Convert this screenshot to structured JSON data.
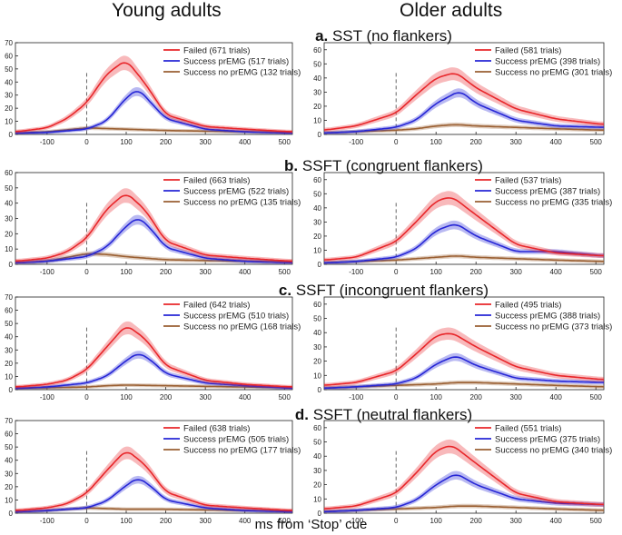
{
  "headers": {
    "young": "Young adults",
    "older": "Older adults"
  },
  "xlabel": "ms from ‘Stop’ cue",
  "colors": {
    "failed": "#e8262a",
    "success_pr": "#2626d6",
    "success_no": "#9a5f32"
  },
  "chart_data": [
    {
      "type": "line",
      "panel": "a",
      "group": "Young adults",
      "title_prefix": "a.",
      "title": "SST (no flankers)",
      "xlim": [
        -180,
        520
      ],
      "ylim": [
        0,
        70
      ],
      "xticks": [
        -100,
        0,
        100,
        200,
        300,
        400,
        500
      ],
      "yticks": [
        0,
        10,
        20,
        30,
        40,
        50,
        60,
        70
      ],
      "series": [
        {
          "name": "Failed (671 trials)",
          "key": "failed",
          "x": [
            -180,
            -100,
            -50,
            0,
            50,
            100,
            150,
            200,
            300,
            400,
            520
          ],
          "y": [
            2,
            5,
            12,
            24,
            46,
            57,
            38,
            15,
            6,
            4,
            2
          ]
        },
        {
          "name": "Success prEMG (517 trials)",
          "key": "success_pr",
          "x": [
            -180,
            -100,
            0,
            50,
            100,
            130,
            160,
            200,
            300,
            400,
            520
          ],
          "y": [
            1,
            1.5,
            4,
            10,
            28,
            35,
            25,
            12,
            4,
            2,
            1
          ]
        },
        {
          "name": "Success no prEMG (132 trials)",
          "key": "success_no",
          "x": [
            -180,
            -100,
            0,
            50,
            100,
            200,
            300,
            400,
            520
          ],
          "y": [
            1,
            2,
            5,
            4.5,
            4,
            3,
            2.5,
            2,
            1.5
          ]
        }
      ]
    },
    {
      "type": "line",
      "panel": "a",
      "group": "Older adults",
      "title_prefix": "",
      "title": "",
      "xlim": [
        -180,
        520
      ],
      "ylim": [
        0,
        65
      ],
      "xticks": [
        -100,
        0,
        100,
        200,
        300,
        400,
        500
      ],
      "yticks": [
        0,
        10,
        20,
        30,
        40,
        50,
        60
      ],
      "series": [
        {
          "name": "Failed (581 trials)",
          "key": "failed",
          "x": [
            -180,
            -100,
            0,
            50,
            100,
            150,
            200,
            300,
            400,
            520
          ],
          "y": [
            3,
            6,
            15,
            28,
            40,
            44,
            33,
            18,
            11,
            7
          ]
        },
        {
          "name": "Success prEMG (398 trials)",
          "key": "success_pr",
          "x": [
            -180,
            -100,
            0,
            50,
            100,
            160,
            200,
            300,
            400,
            520
          ],
          "y": [
            1,
            2,
            5,
            10,
            22,
            31,
            22,
            10,
            6,
            5
          ]
        },
        {
          "name": "Success no prEMG (301 trials)",
          "key": "success_no",
          "x": [
            -180,
            -100,
            0,
            50,
            100,
            150,
            200,
            300,
            400,
            520
          ],
          "y": [
            1,
            2,
            3,
            4,
            6,
            7,
            6,
            5,
            4,
            3
          ]
        }
      ]
    },
    {
      "type": "line",
      "panel": "b",
      "group": "Young adults",
      "title_prefix": "b.",
      "title": "SSFT (congruent flankers)",
      "xlim": [
        -180,
        520
      ],
      "ylim": [
        0,
        60
      ],
      "xticks": [
        -100,
        0,
        100,
        200,
        300,
        400,
        500
      ],
      "yticks": [
        0,
        10,
        20,
        30,
        40,
        50,
        60
      ],
      "series": [
        {
          "name": "Failed (663 trials)",
          "key": "failed",
          "x": [
            -180,
            -100,
            -50,
            0,
            50,
            100,
            150,
            200,
            300,
            400,
            520
          ],
          "y": [
            2,
            4,
            8,
            17,
            36,
            47,
            35,
            15,
            6,
            4,
            2
          ]
        },
        {
          "name": "Success prEMG (522 trials)",
          "key": "success_pr",
          "x": [
            -180,
            -100,
            0,
            50,
            100,
            130,
            160,
            200,
            300,
            400,
            520
          ],
          "y": [
            1,
            2,
            5,
            11,
            25,
            31,
            24,
            11,
            4,
            2,
            1
          ]
        },
        {
          "name": "Success no prEMG (135 trials)",
          "key": "success_no",
          "x": [
            -180,
            -100,
            0,
            50,
            100,
            200,
            300,
            400,
            520
          ],
          "y": [
            1,
            2,
            7,
            6.5,
            5,
            3,
            2.5,
            2,
            1.5
          ]
        }
      ]
    },
    {
      "type": "line",
      "panel": "b",
      "group": "Older adults",
      "title_prefix": "",
      "title": "",
      "xlim": [
        -180,
        520
      ],
      "ylim": [
        0,
        65
      ],
      "xticks": [
        -100,
        0,
        100,
        200,
        300,
        400,
        500
      ],
      "yticks": [
        0,
        10,
        20,
        30,
        40,
        50,
        60
      ],
      "series": [
        {
          "name": "Failed (537 trials)",
          "key": "failed",
          "x": [
            -180,
            -100,
            0,
            50,
            100,
            140,
            200,
            300,
            400,
            520
          ],
          "y": [
            3,
            5,
            16,
            30,
            45,
            48,
            35,
            14,
            8,
            6
          ]
        },
        {
          "name": "Success prEMG (387 trials)",
          "key": "success_pr",
          "x": [
            -180,
            -100,
            0,
            50,
            100,
            150,
            200,
            300,
            400,
            520
          ],
          "y": [
            1,
            2,
            5,
            11,
            24,
            29,
            20,
            9,
            9,
            6
          ]
        },
        {
          "name": "Success no prEMG (335 trials)",
          "key": "success_no",
          "x": [
            -180,
            -100,
            0,
            50,
            100,
            150,
            200,
            300,
            400,
            520
          ],
          "y": [
            1,
            2,
            3,
            4,
            5,
            6,
            5,
            4,
            3,
            2
          ]
        }
      ]
    },
    {
      "type": "line",
      "panel": "c",
      "group": "Young adults",
      "title_prefix": "c.",
      "title": "SSFT (incongruent flankers)",
      "xlim": [
        -180,
        520
      ],
      "ylim": [
        0,
        70
      ],
      "xticks": [
        -100,
        0,
        100,
        200,
        300,
        400,
        500
      ],
      "yticks": [
        0,
        10,
        20,
        30,
        40,
        50,
        60,
        70
      ],
      "series": [
        {
          "name": "Failed (642 trials)",
          "key": "failed",
          "x": [
            -180,
            -100,
            -50,
            0,
            50,
            100,
            150,
            200,
            300,
            400,
            520
          ],
          "y": [
            2,
            4,
            7,
            15,
            32,
            49,
            38,
            18,
            7,
            4,
            2
          ]
        },
        {
          "name": "Success prEMG (510 trials)",
          "key": "success_pr",
          "x": [
            -180,
            -100,
            0,
            50,
            100,
            130,
            160,
            200,
            300,
            400,
            520
          ],
          "y": [
            1,
            2,
            5,
            10,
            22,
            28,
            23,
            12,
            5,
            3,
            1
          ]
        },
        {
          "name": "Success no prEMG (168 trials)",
          "key": "success_no",
          "x": [
            -180,
            -100,
            0,
            50,
            100,
            200,
            300,
            400,
            520
          ],
          "y": [
            1,
            1.5,
            2,
            3,
            3.5,
            3,
            2.5,
            2,
            1.5
          ]
        }
      ]
    },
    {
      "type": "line",
      "panel": "c",
      "group": "Older adults",
      "title_prefix": "",
      "title": "",
      "xlim": [
        -180,
        520
      ],
      "ylim": [
        0,
        65
      ],
      "xticks": [
        -100,
        0,
        100,
        200,
        300,
        400,
        500
      ],
      "yticks": [
        0,
        10,
        20,
        30,
        40,
        50,
        60
      ],
      "series": [
        {
          "name": "Failed (495 trials)",
          "key": "failed",
          "x": [
            -180,
            -100,
            0,
            50,
            100,
            140,
            200,
            300,
            400,
            520
          ],
          "y": [
            3,
            5,
            13,
            25,
            38,
            40,
            30,
            16,
            10,
            7
          ]
        },
        {
          "name": "Success prEMG (388 trials)",
          "key": "success_pr",
          "x": [
            -180,
            -100,
            0,
            50,
            100,
            150,
            200,
            300,
            400,
            520
          ],
          "y": [
            1,
            2,
            4,
            8,
            18,
            24,
            17,
            8,
            6,
            5
          ]
        },
        {
          "name": "Success no prEMG (373 trials)",
          "key": "success_no",
          "x": [
            -180,
            -100,
            0,
            50,
            100,
            150,
            200,
            300,
            400,
            520
          ],
          "y": [
            1,
            2,
            3,
            3.5,
            4,
            5,
            5,
            4,
            3,
            2
          ]
        }
      ]
    },
    {
      "type": "line",
      "panel": "d",
      "group": "Young adults",
      "title_prefix": "d.",
      "title": "SSFT (neutral flankers)",
      "xlim": [
        -180,
        520
      ],
      "ylim": [
        0,
        70
      ],
      "xticks": [
        -100,
        0,
        100,
        200,
        300,
        400,
        500
      ],
      "yticks": [
        0,
        10,
        20,
        30,
        40,
        50,
        60,
        70
      ],
      "series": [
        {
          "name": "Failed (638 trials)",
          "key": "failed",
          "x": [
            -180,
            -100,
            -50,
            0,
            50,
            100,
            150,
            200,
            300,
            400,
            520
          ],
          "y": [
            2,
            4,
            7,
            15,
            32,
            48,
            36,
            16,
            6,
            4,
            2
          ]
        },
        {
          "name": "Success prEMG (505 trials)",
          "key": "success_pr",
          "x": [
            -180,
            -100,
            0,
            50,
            100,
            130,
            160,
            200,
            300,
            400,
            520
          ],
          "y": [
            1,
            2,
            4,
            9,
            21,
            27,
            21,
            10,
            4,
            2,
            1
          ]
        },
        {
          "name": "Success no prEMG (177 trials)",
          "key": "success_no",
          "x": [
            -180,
            -100,
            0,
            50,
            100,
            200,
            300,
            400,
            520
          ],
          "y": [
            1,
            2,
            4,
            3.5,
            3,
            3,
            2.5,
            2,
            1.5
          ]
        }
      ]
    },
    {
      "type": "line",
      "panel": "d",
      "group": "Older adults",
      "title_prefix": "",
      "title": "",
      "xlim": [
        -180,
        520
      ],
      "ylim": [
        0,
        65
      ],
      "xticks": [
        -100,
        0,
        100,
        200,
        300,
        400,
        500
      ],
      "yticks": [
        0,
        10,
        20,
        30,
        40,
        50,
        60
      ],
      "series": [
        {
          "name": "Failed (551 trials)",
          "key": "failed",
          "x": [
            -180,
            -100,
            0,
            50,
            100,
            140,
            200,
            300,
            400,
            520
          ],
          "y": [
            3,
            5,
            14,
            28,
            44,
            48,
            35,
            14,
            8,
            6
          ]
        },
        {
          "name": "Success prEMG (375 trials)",
          "key": "success_pr",
          "x": [
            -180,
            -100,
            0,
            50,
            100,
            150,
            200,
            300,
            400,
            520
          ],
          "y": [
            1,
            2,
            4,
            9,
            20,
            28,
            20,
            10,
            7,
            6
          ]
        },
        {
          "name": "Success no prEMG (340 trials)",
          "key": "success_no",
          "x": [
            -180,
            -100,
            0,
            50,
            100,
            150,
            200,
            300,
            400,
            520
          ],
          "y": [
            1,
            2,
            3,
            3.5,
            4,
            5,
            5,
            4,
            3,
            2
          ]
        }
      ]
    }
  ]
}
